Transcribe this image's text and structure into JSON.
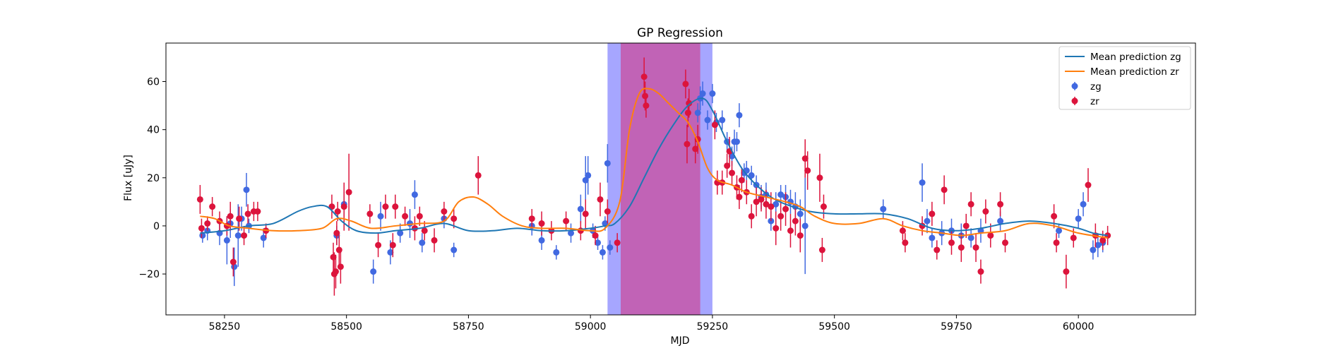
{
  "chart_data": {
    "type": "scatter",
    "title": "GP Regression",
    "xlabel": "MJD",
    "ylabel": "Flux [uJy]",
    "xlim": [
      58130,
      60240
    ],
    "ylim": [
      -37,
      76
    ],
    "xticks": [
      58250,
      58500,
      58750,
      59000,
      59250,
      59500,
      59750,
      60000
    ],
    "yticks": [
      -20,
      0,
      20,
      40,
      60
    ],
    "legend_position": "top-right",
    "colors": {
      "zg_points": "#4169e1",
      "zr_points": "#dc143c",
      "zg_mean": "#1f77b4",
      "zr_mean": "#ff7f0e",
      "band_zg": "#8080ff",
      "band_zr": "#c25fb2"
    },
    "shaded_regions": [
      {
        "series": "zg",
        "x": [
          59035,
          59250
        ]
      },
      {
        "series": "zr",
        "x": [
          59062,
          59225
        ]
      }
    ],
    "series": [
      {
        "name": "Mean prediction zg",
        "kind": "line",
        "x": [
          58200,
          58250,
          58300,
          58350,
          58400,
          58430,
          58460,
          58490,
          58520,
          58560,
          58600,
          58650,
          58700,
          58750,
          58800,
          58850,
          58900,
          58950,
          59000,
          59030,
          59050,
          59080,
          59110,
          59140,
          59170,
          59200,
          59230,
          59250,
          59280,
          59310,
          59340,
          59370,
          59400,
          59450,
          59500,
          59550,
          59600,
          59650,
          59700,
          59750,
          59800,
          59850,
          59900,
          59950,
          60000,
          60030,
          60060
        ],
        "y": [
          -3,
          -2,
          0,
          1,
          6,
          8,
          8,
          2,
          -2,
          -3,
          -2,
          -1,
          1,
          -2,
          -2,
          -1,
          -2,
          -2,
          -1,
          0,
          1,
          8,
          20,
          32,
          42,
          50,
          53,
          48,
          35,
          24,
          17,
          12,
          9,
          6,
          5,
          5,
          5,
          3,
          -1,
          -2,
          -1,
          1,
          2,
          1,
          -1,
          -3,
          -4
        ]
      },
      {
        "name": "Mean prediction zr",
        "kind": "line",
        "x": [
          58200,
          58230,
          58260,
          58300,
          58350,
          58400,
          58450,
          58480,
          58510,
          58550,
          58600,
          58650,
          58700,
          58730,
          58760,
          58790,
          58820,
          58860,
          58900,
          58950,
          59000,
          59030,
          59060,
          59080,
          59100,
          59120,
          59140,
          59160,
          59180,
          59200,
          59220,
          59240,
          59260,
          59290,
          59320,
          59360,
          59400,
          59430,
          59460,
          59500,
          59550,
          59600,
          59640,
          59680,
          59720,
          59760,
          59800,
          59850,
          59900,
          59950,
          60000,
          60060
        ],
        "y": [
          4,
          3,
          0,
          -1,
          -2,
          -2,
          -1,
          3,
          2,
          -1,
          0,
          1,
          2,
          10,
          12,
          9,
          4,
          0,
          -1,
          -1,
          -2,
          -1,
          10,
          40,
          55,
          57,
          55,
          51,
          47,
          43,
          35,
          24,
          19,
          17,
          14,
          12,
          10,
          8,
          4,
          1,
          1,
          3,
          0,
          -2,
          -3,
          -4,
          -3,
          -2,
          1,
          0,
          -3,
          -5
        ]
      },
      {
        "name": "zg",
        "kind": "errorbar",
        "points": [
          [
            58205,
            -4,
            3
          ],
          [
            58215,
            -2,
            4
          ],
          [
            58240,
            -3,
            5
          ],
          [
            58255,
            -6,
            10
          ],
          [
            58262,
            1,
            6
          ],
          [
            58270,
            -17,
            8
          ],
          [
            58278,
            -4,
            13
          ],
          [
            58285,
            3,
            5
          ],
          [
            58295,
            15,
            7
          ],
          [
            58300,
            0,
            3
          ],
          [
            58330,
            -5,
            4
          ],
          [
            58480,
            -4,
            4
          ],
          [
            58495,
            9,
            5
          ],
          [
            58555,
            -19,
            5
          ],
          [
            58570,
            4,
            6
          ],
          [
            58590,
            -11,
            5
          ],
          [
            58610,
            -3,
            4
          ],
          [
            58630,
            1,
            6
          ],
          [
            58640,
            13,
            6
          ],
          [
            58655,
            -7,
            4
          ],
          [
            58700,
            3,
            4
          ],
          [
            58720,
            -10,
            3
          ],
          [
            58880,
            0,
            4
          ],
          [
            58900,
            -6,
            4
          ],
          [
            58930,
            -11,
            3
          ],
          [
            58960,
            -3,
            4
          ],
          [
            58980,
            7,
            6
          ],
          [
            58990,
            19,
            10
          ],
          [
            58995,
            21,
            8
          ],
          [
            59005,
            -2,
            3
          ],
          [
            59015,
            -7,
            3
          ],
          [
            59025,
            -11,
            3
          ],
          [
            59030,
            1,
            3
          ],
          [
            59040,
            -9,
            3
          ],
          [
            59035,
            26,
            8
          ],
          [
            59220,
            47,
            4
          ],
          [
            59225,
            53,
            5
          ],
          [
            59230,
            55,
            5
          ],
          [
            59240,
            44,
            4
          ],
          [
            59250,
            55,
            4
          ],
          [
            59258,
            43,
            4
          ],
          [
            59270,
            44,
            4
          ],
          [
            59280,
            35,
            4
          ],
          [
            59290,
            29,
            4
          ],
          [
            59295,
            35,
            5
          ],
          [
            59300,
            35,
            4
          ],
          [
            59305,
            46,
            5
          ],
          [
            59315,
            22,
            4
          ],
          [
            59320,
            23,
            4
          ],
          [
            59330,
            21,
            4
          ],
          [
            59340,
            17,
            4
          ],
          [
            59350,
            12,
            5
          ],
          [
            59360,
            13,
            5
          ],
          [
            59370,
            2,
            4
          ],
          [
            59380,
            9,
            5
          ],
          [
            59390,
            13,
            4
          ],
          [
            59400,
            12,
            5
          ],
          [
            59410,
            10,
            5
          ],
          [
            59420,
            8,
            6
          ],
          [
            59430,
            5,
            6
          ],
          [
            59440,
            0,
            20
          ],
          [
            59600,
            7,
            4
          ],
          [
            59680,
            18,
            8
          ],
          [
            59690,
            2,
            5
          ],
          [
            59700,
            -5,
            4
          ],
          [
            59720,
            -3,
            5
          ],
          [
            59740,
            -2,
            5
          ],
          [
            59760,
            -4,
            5
          ],
          [
            59780,
            -5,
            4
          ],
          [
            59800,
            -2,
            5
          ],
          [
            59840,
            2,
            4
          ],
          [
            59960,
            -2,
            3
          ],
          [
            60000,
            3,
            4
          ],
          [
            60010,
            9,
            5
          ],
          [
            60030,
            -10,
            4
          ],
          [
            60040,
            -8,
            5
          ],
          [
            60050,
            -7,
            4
          ]
        ]
      },
      {
        "name": "zr",
        "kind": "errorbar",
        "points": [
          [
            58200,
            11,
            6
          ],
          [
            58203,
            -1,
            4
          ],
          [
            58215,
            1,
            3
          ],
          [
            58225,
            8,
            4
          ],
          [
            58240,
            2,
            4
          ],
          [
            58255,
            0,
            4
          ],
          [
            58262,
            4,
            6
          ],
          [
            58268,
            -15,
            6
          ],
          [
            58280,
            3,
            5
          ],
          [
            58290,
            -4,
            4
          ],
          [
            58298,
            5,
            4
          ],
          [
            58310,
            6,
            4
          ],
          [
            58318,
            6,
            4
          ],
          [
            58335,
            -2,
            3
          ],
          [
            58470,
            8,
            5
          ],
          [
            58473,
            -13,
            6
          ],
          [
            58475,
            -20,
            9
          ],
          [
            58478,
            -19,
            7
          ],
          [
            58480,
            -3,
            5
          ],
          [
            58482,
            6,
            4
          ],
          [
            58485,
            -10,
            6
          ],
          [
            58488,
            -17,
            7
          ],
          [
            58495,
            8,
            10
          ],
          [
            58505,
            14,
            16
          ],
          [
            58548,
            5,
            4
          ],
          [
            58565,
            -8,
            5
          ],
          [
            58580,
            8,
            5
          ],
          [
            58595,
            -8,
            5
          ],
          [
            58600,
            8,
            5
          ],
          [
            58620,
            4,
            4
          ],
          [
            58640,
            -1,
            5
          ],
          [
            58650,
            4,
            4
          ],
          [
            58660,
            -2,
            4
          ],
          [
            58680,
            -6,
            5
          ],
          [
            58700,
            6,
            4
          ],
          [
            58720,
            3,
            4
          ],
          [
            58770,
            21,
            8
          ],
          [
            58880,
            3,
            4
          ],
          [
            58900,
            1,
            5
          ],
          [
            58920,
            -2,
            4
          ],
          [
            58950,
            2,
            4
          ],
          [
            58980,
            -2,
            4
          ],
          [
            58990,
            5,
            6
          ],
          [
            59010,
            -4,
            4
          ],
          [
            59020,
            11,
            7
          ],
          [
            59035,
            6,
            5
          ],
          [
            59055,
            -7,
            4
          ],
          [
            59110,
            62,
            8
          ],
          [
            59112,
            54,
            6
          ],
          [
            59114,
            50,
            5
          ],
          [
            59195,
            59,
            6
          ],
          [
            59198,
            34,
            8
          ],
          [
            59200,
            47,
            6
          ],
          [
            59202,
            51,
            6
          ],
          [
            59215,
            32,
            6
          ],
          [
            59220,
            36,
            6
          ],
          [
            59255,
            42,
            6
          ],
          [
            59260,
            18,
            5
          ],
          [
            59270,
            18,
            5
          ],
          [
            59280,
            25,
            5
          ],
          [
            59285,
            31,
            6
          ],
          [
            59290,
            22,
            5
          ],
          [
            59300,
            16,
            5
          ],
          [
            59305,
            12,
            5
          ],
          [
            59310,
            19,
            5
          ],
          [
            59320,
            14,
            5
          ],
          [
            59330,
            4,
            5
          ],
          [
            59340,
            10,
            6
          ],
          [
            59350,
            11,
            5
          ],
          [
            59360,
            9,
            6
          ],
          [
            59370,
            8,
            6
          ],
          [
            59380,
            -1,
            7
          ],
          [
            59390,
            4,
            6
          ],
          [
            59400,
            7,
            7
          ],
          [
            59410,
            -2,
            7
          ],
          [
            59420,
            2,
            6
          ],
          [
            59430,
            -4,
            7
          ],
          [
            59440,
            28,
            8
          ],
          [
            59445,
            23,
            8
          ],
          [
            59470,
            20,
            10
          ],
          [
            59475,
            -10,
            5
          ],
          [
            59478,
            8,
            5
          ],
          [
            59640,
            -2,
            4
          ],
          [
            59645,
            -7,
            4
          ],
          [
            59680,
            0,
            4
          ],
          [
            59700,
            5,
            5
          ],
          [
            59710,
            -10,
            4
          ],
          [
            59725,
            15,
            6
          ],
          [
            59740,
            -7,
            5
          ],
          [
            59760,
            -9,
            6
          ],
          [
            59770,
            0,
            5
          ],
          [
            59780,
            9,
            5
          ],
          [
            59790,
            -9,
            6
          ],
          [
            59800,
            -19,
            5
          ],
          [
            59810,
            6,
            5
          ],
          [
            59820,
            -4,
            5
          ],
          [
            59840,
            9,
            5
          ],
          [
            59850,
            -7,
            4
          ],
          [
            59950,
            4,
            5
          ],
          [
            59955,
            -7,
            4
          ],
          [
            59975,
            -19,
            7
          ],
          [
            59990,
            -5,
            4
          ],
          [
            60020,
            17,
            7
          ],
          [
            60035,
            -4,
            5
          ],
          [
            60050,
            -6,
            4
          ],
          [
            60060,
            -4,
            4
          ]
        ]
      }
    ]
  }
}
